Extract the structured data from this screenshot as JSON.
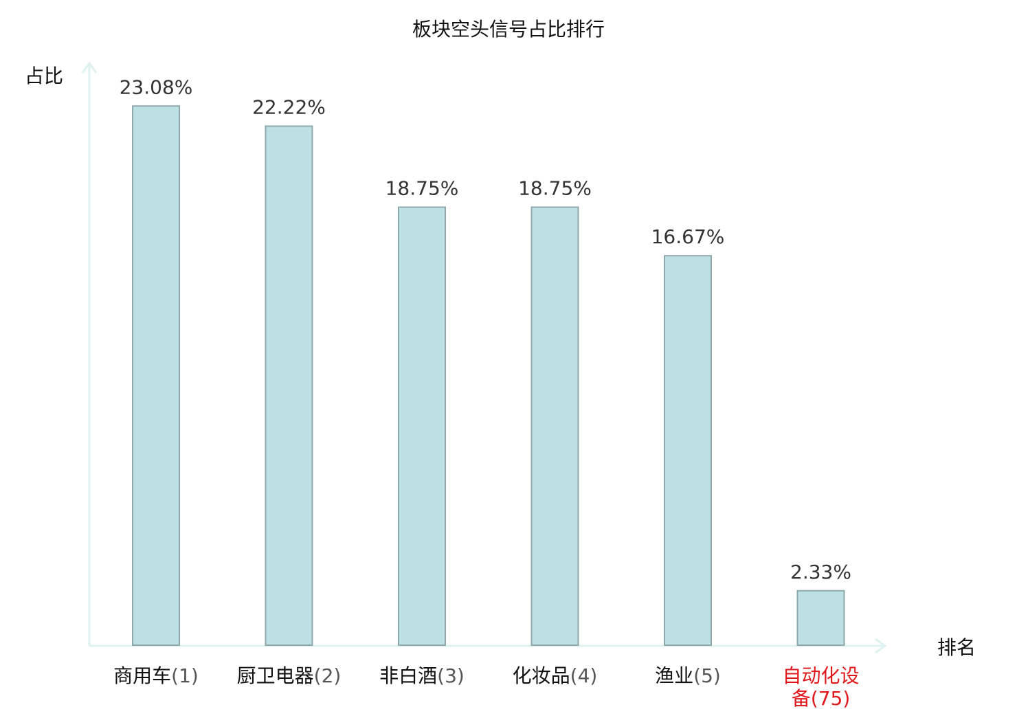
{
  "colors": {
    "bar_fill": "#bce0e3",
    "bar_stroke": "#8fa9ab",
    "axis": "#dff2ef",
    "label_text": "#333333",
    "category_text": "#111111",
    "rank_text": "#555555",
    "highlight": "#e0181b"
  },
  "chart_data": {
    "type": "bar",
    "title": "板块空头信号占比排行",
    "ylabel": "占比",
    "xlabel": "排名",
    "ylim": [
      0,
      25
    ],
    "grid": false,
    "legend": "none",
    "categories": [
      {
        "name": "商用车",
        "rank": "(1)",
        "highlight": false
      },
      {
        "name": "厨卫电器",
        "rank": "(2)",
        "highlight": false
      },
      {
        "name": "非白酒",
        "rank": "(3)",
        "highlight": false
      },
      {
        "name": "化妆品",
        "rank": "(4)",
        "highlight": false
      },
      {
        "name": "渔业",
        "rank": "(5)",
        "highlight": false
      },
      {
        "name_lines": [
          "自动化设",
          "备"
        ],
        "rank": "(75)",
        "highlight": true
      }
    ],
    "values": [
      23.08,
      22.22,
      18.75,
      18.75,
      16.67,
      2.33
    ],
    "data_labels": [
      "23.08%",
      "22.22%",
      "18.75%",
      "18.75%",
      "16.67%",
      "2.33%"
    ]
  }
}
